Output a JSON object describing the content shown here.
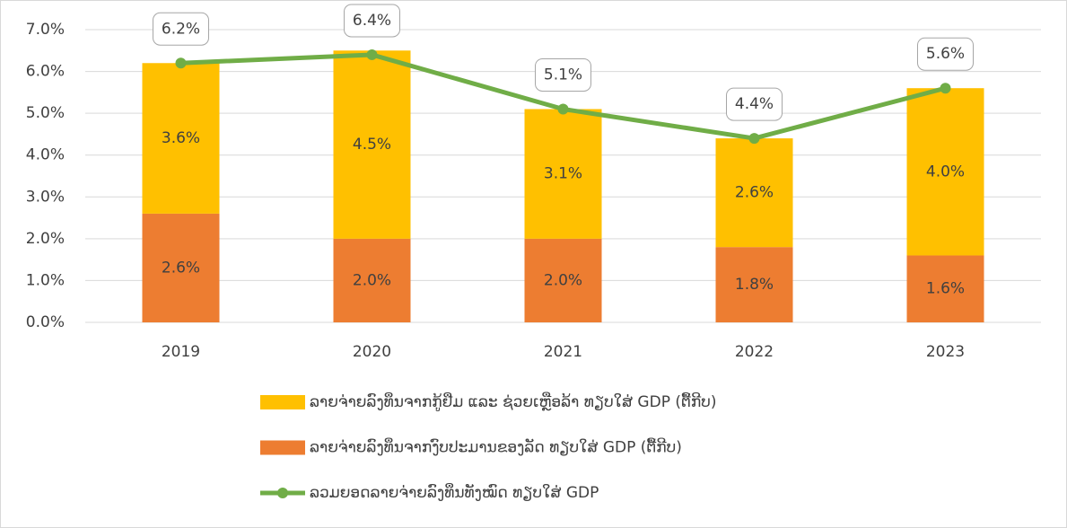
{
  "chart_data": {
    "type": "bar",
    "stacked": true,
    "categories": [
      "2019",
      "2020",
      "2021",
      "2022",
      "2023"
    ],
    "series": [
      {
        "name": "ລາຍຈ່າຍລົງທຶນຈາກກູ້ຢືມ ແລະ ຊ່ວຍເຫຼືອລ້າ  ທຽບໃສ່ GDP (ຕື້ກີບ)",
        "type": "bar",
        "color": "#ffc000",
        "values": [
          3.6,
          4.5,
          3.1,
          2.6,
          4.0
        ],
        "value_labels": [
          "3.6%",
          "4.5%",
          "3.1%",
          "2.6%",
          "4.0%"
        ]
      },
      {
        "name": "ລາຍຈ່າຍລົງທຶນຈາກງົບປະມານຂອງລັດ  ທຽບໃສ່ GDP (ຕື້ກີບ)",
        "type": "bar",
        "color": "#ed7d31",
        "values": [
          2.6,
          2.0,
          2.0,
          1.8,
          1.6
        ],
        "value_labels": [
          "2.6%",
          "2.0%",
          "2.0%",
          "1.8%",
          "1.6%"
        ]
      },
      {
        "name": "ລວມຍອດລາຍຈ່າຍລົງທຶນທັງໝົດ ທຽບໃສ່ GDP",
        "type": "line",
        "color": "#70ad47",
        "values": [
          6.2,
          6.4,
          5.1,
          4.4,
          5.6
        ],
        "value_labels": [
          "6.2%",
          "6.4%",
          "5.1%",
          "4.4%",
          "5.6%"
        ]
      }
    ],
    "ylim": [
      0,
      7
    ],
    "yticks": [
      {
        "value": 0,
        "label": "0.0%"
      },
      {
        "value": 1,
        "label": "1.0%"
      },
      {
        "value": 2,
        "label": "2.0%"
      },
      {
        "value": 3,
        "label": "3.0%"
      },
      {
        "value": 4,
        "label": "4.0%"
      },
      {
        "value": 5,
        "label": "5.0%"
      },
      {
        "value": 6,
        "label": "6.0%"
      },
      {
        "value": 7,
        "label": "7.0%"
      }
    ],
    "grid": true,
    "legend": "bottom"
  }
}
